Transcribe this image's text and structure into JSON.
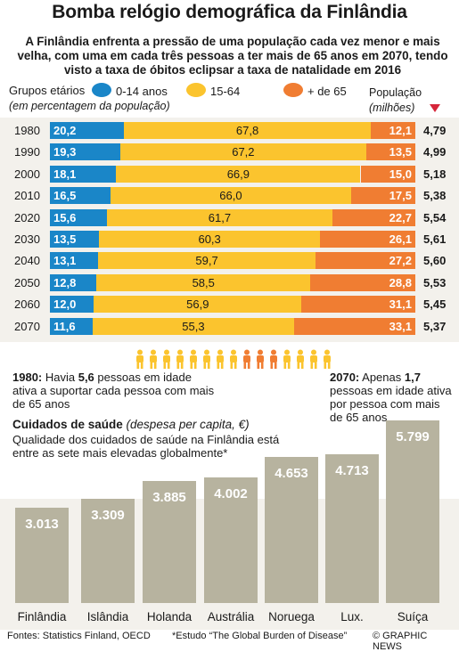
{
  "title": "Bomba relógio demográfica da Finlândia",
  "subtitle": "A Finlândia enfrenta a pressão de uma população cada vez menor e mais velha, com uma em cada três pessoas a ter mais de 65 anos em 2070, tendo visto a taxa de óbitos eclipsar a taxa de natalidade em 2016",
  "colors": {
    "age_0_14": "#1a86c8",
    "age_15_64": "#fbc42e",
    "age_65_plus": "#f07d32",
    "health_bar": "#b7b39f",
    "arrow": "#d6263a"
  },
  "legend": {
    "label": "Grupos etários",
    "sublabel": "(em percentagem da população)",
    "items": [
      "0-14 anos",
      "15-64",
      "+ de 65"
    ],
    "population_label": "População",
    "population_unit": "(milhões)"
  },
  "chart_data": [
    {
      "type": "bar",
      "orientation": "horizontal-stacked",
      "unit": "%",
      "categories": [
        "1980",
        "1990",
        "2000",
        "2010",
        "2020",
        "2030",
        "2040",
        "2050",
        "2060",
        "2070"
      ],
      "series": [
        {
          "name": "0-14 anos",
          "values": [
            20.2,
            19.3,
            18.1,
            16.5,
            15.6,
            13.5,
            13.1,
            12.8,
            12.0,
            11.6
          ],
          "labels": [
            "20,2",
            "19,3",
            "18,1",
            "16,5",
            "15,6",
            "13,5",
            "13,1",
            "12,8",
            "12,0",
            "11,6"
          ]
        },
        {
          "name": "15-64",
          "values": [
            67.8,
            67.2,
            66.9,
            66.0,
            61.7,
            60.3,
            59.7,
            58.5,
            56.9,
            55.3
          ],
          "labels": [
            "67,8",
            "67,2",
            "66,9",
            "66,0",
            "61,7",
            "60,3",
            "59,7",
            "58,5",
            "56,9",
            "55,3"
          ]
        },
        {
          "name": "+ de 65",
          "values": [
            12.1,
            13.5,
            15.0,
            17.5,
            22.7,
            26.1,
            27.2,
            28.8,
            31.1,
            33.1
          ],
          "labels": [
            "12,1",
            "13,5",
            "15,0",
            "17,5",
            "22,7",
            "26,1",
            "27,2",
            "28,8",
            "31,1",
            "33,1"
          ]
        }
      ],
      "population_millions": [
        4.79,
        4.99,
        5.18,
        5.38,
        5.54,
        5.61,
        5.6,
        5.53,
        5.45,
        5.37
      ],
      "population_labels": [
        "4,79",
        "4,99",
        "5,18",
        "5,38",
        "5,54",
        "5,61",
        "5,60",
        "5,53",
        "5,45",
        "5,37"
      ]
    },
    {
      "type": "bar",
      "orientation": "vertical",
      "title": "Cuidados de saúde",
      "subtitle": "(despesa per capita, €)",
      "categories": [
        "Finlândia",
        "Islândia",
        "Holanda",
        "Austrália",
        "Noruega",
        "Lux.",
        "Suíça"
      ],
      "values": [
        3013,
        3309,
        3885,
        4002,
        4653,
        4713,
        5799
      ],
      "labels": [
        "3.013",
        "3.309",
        "3.885",
        "4.002",
        "4.653",
        "4.713",
        "5.799"
      ]
    }
  ],
  "notes": {
    "n1980_year": "1980:",
    "n1980_text": " Havia ",
    "n1980_bold": "5,6",
    "n1980_rest": " pessoas em idade ativa a suportar cada pessoa com mais de 65 anos",
    "n2070_year": "2070:",
    "n2070_text": " Apenas ",
    "n2070_bold": "1,7",
    "n2070_rest": " pessoas em idade ativa por pessoa com mais de 65 anos"
  },
  "health": {
    "title": "Cuidados de saúde",
    "subtitle": "(despesa per capita, €)",
    "quality": "Qualidade dos cuidados de saúde na Finlândia está entre as sete mais elevadas globalmente*"
  },
  "footer": {
    "source": "Fontes: Statistics Finland, OECD",
    "study": "*Estudo “The Global Burden of Disease”",
    "credit": "© GRAPHIC NEWS"
  }
}
